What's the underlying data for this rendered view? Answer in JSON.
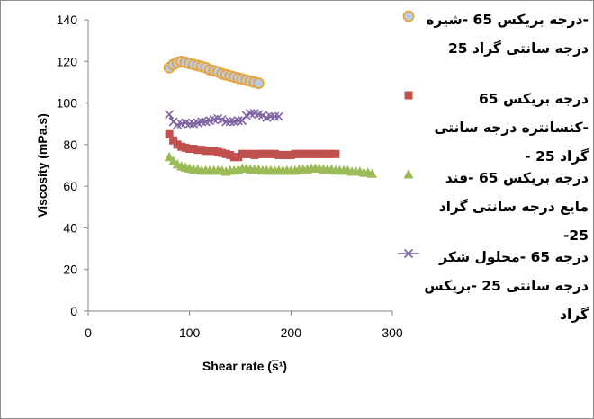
{
  "chart_data": {
    "type": "scatter",
    "xlabel": "Shear rate (s̅¹)",
    "ylabel": "Viscosity (mPa.s)",
    "xlim": [
      0,
      300
    ],
    "ylim": [
      0,
      140
    ],
    "x_ticks": [
      "0",
      "100",
      "200",
      "300"
    ],
    "y_ticks": [
      "0",
      "20",
      "40",
      "60",
      "80",
      "100",
      "120",
      "140"
    ],
    "grid": false,
    "legend_position": "right",
    "series": [
      {
        "name": "-درجه بریکس 65 -شیره درجه سانتی گراد 25",
        "marker": "circle",
        "color": "#b8cde3",
        "edge_color": "#e8a33a",
        "x": [
          80,
          84,
          88,
          92,
          96,
          100,
          104,
          108,
          112,
          116,
          120,
          124,
          128,
          132,
          136,
          140,
          144,
          148,
          152,
          156,
          160,
          164,
          168
        ],
        "y": [
          117,
          118.5,
          119.5,
          120,
          119.5,
          119,
          118.5,
          118,
          117.5,
          117,
          116,
          115.5,
          115,
          114,
          113.5,
          113,
          112.5,
          112,
          111.5,
          111,
          110.5,
          110,
          109.5
        ]
      },
      {
        "name": "درجه بریکس 65 -کنسانتره درجه سانتی گراد 25 -",
        "marker": "square",
        "color": "#c0504d",
        "x": [
          80,
          84,
          88,
          92,
          96,
          100,
          104,
          108,
          112,
          116,
          120,
          124,
          128,
          132,
          136,
          140,
          144,
          148,
          152,
          156,
          160,
          164,
          168,
          172,
          176,
          180,
          184,
          188,
          192,
          196,
          200,
          204,
          208,
          212,
          216,
          220,
          224,
          228,
          232,
          236,
          240,
          244
        ],
        "y": [
          85,
          82,
          80,
          79,
          78.5,
          78,
          78,
          77.5,
          77.5,
          77,
          77,
          77,
          76.5,
          76,
          75.5,
          75,
          74,
          74,
          75.5,
          75.5,
          75.5,
          75,
          75.5,
          75.5,
          75.5,
          75.5,
          75.5,
          75,
          75,
          75,
          75,
          75.5,
          75.5,
          75.5,
          75.5,
          75.5,
          75.5,
          75.5,
          75.5,
          75.5,
          75.5,
          75.5
        ]
      },
      {
        "name": "درجه بریکس 65 -قند مایع درجه سانتی گراد 25-",
        "marker": "triangle",
        "color": "#9bbb59",
        "x": [
          80,
          84,
          88,
          92,
          96,
          100,
          104,
          108,
          112,
          116,
          120,
          124,
          128,
          132,
          136,
          140,
          144,
          148,
          152,
          156,
          160,
          164,
          168,
          172,
          176,
          180,
          184,
          188,
          192,
          196,
          200,
          204,
          208,
          212,
          216,
          220,
          224,
          228,
          232,
          236,
          240,
          244,
          248,
          252,
          256,
          260,
          264,
          268,
          272,
          276,
          280
        ],
        "y": [
          74,
          72,
          70.5,
          69.5,
          69,
          68.5,
          68,
          68,
          67.5,
          67.5,
          67.5,
          67.5,
          67.5,
          67.5,
          67,
          67.5,
          67.5,
          68,
          68.5,
          68.5,
          68,
          68,
          68,
          67.5,
          67.5,
          67.5,
          67.5,
          67.5,
          67.5,
          67.5,
          67.5,
          67.5,
          68,
          68,
          68,
          68.5,
          68.5,
          68.5,
          68,
          68,
          68,
          67.5,
          67.5,
          67.5,
          67.5,
          67,
          67,
          67,
          66.5,
          66.5,
          66
        ]
      },
      {
        "name": "درجه 65 -محلول شکر درجه سانتی 25 -بریکس گراد",
        "marker": "x",
        "color": "#8064a2",
        "x": [
          80,
          84,
          88,
          92,
          96,
          100,
          104,
          108,
          112,
          116,
          120,
          124,
          128,
          132,
          136,
          140,
          144,
          148,
          152,
          156,
          160,
          164,
          168,
          172,
          176,
          180,
          184,
          188
        ],
        "y": [
          94.5,
          91,
          89.5,
          90,
          90.5,
          90,
          90,
          90.5,
          91,
          91,
          91.5,
          92,
          92.5,
          92,
          91,
          91,
          91,
          91.5,
          91.5,
          94,
          95,
          95,
          94.5,
          94,
          93,
          93.5,
          93.5,
          93.5
        ]
      }
    ]
  }
}
